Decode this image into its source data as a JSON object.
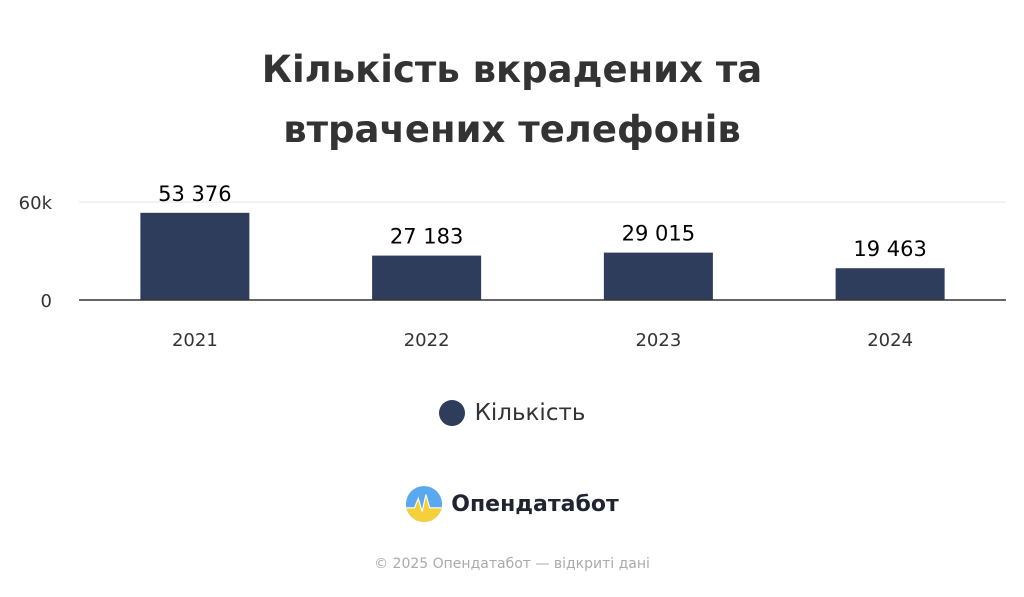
{
  "title_line1": "Кількість вкрадених та",
  "title_line2": "втрачених телефонів",
  "chart_data": {
    "type": "bar",
    "categories": [
      "2021",
      "2022",
      "2023",
      "2024"
    ],
    "series": [
      {
        "name": "Кількість",
        "values": [
          53376,
          27183,
          29015,
          19463
        ],
        "labels": [
          "53 376",
          "27 183",
          "29 015",
          "19 463"
        ]
      }
    ],
    "yticks": [
      0,
      60000
    ],
    "ytick_labels": [
      "0",
      "60k"
    ],
    "ylim": [
      0,
      60000
    ],
    "grid": true,
    "legend_position": "bottom",
    "bar_color": "#2e3d5c"
  },
  "legend": {
    "label": "Кількість",
    "color": "#2e3d5c"
  },
  "brand": {
    "name": "Опендатабот"
  },
  "footer": {
    "copyright": "© 2025 Опендатабот — відкриті дані"
  }
}
